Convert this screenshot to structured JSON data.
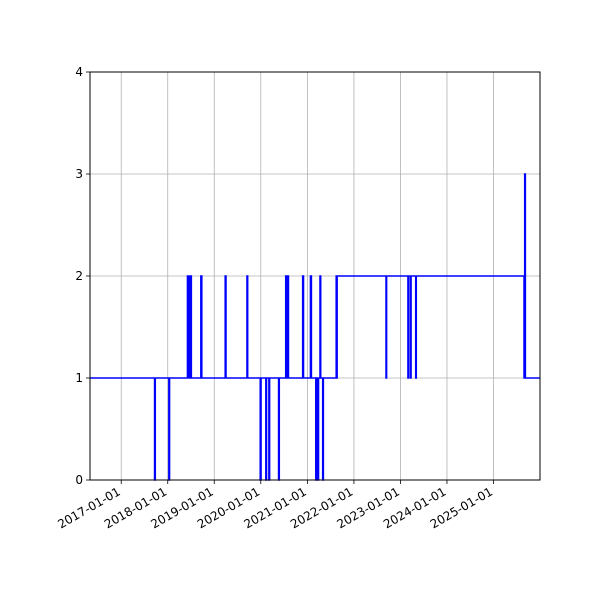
{
  "chart_data": {
    "type": "line",
    "title": "",
    "xlabel": "",
    "ylabel": "",
    "grid": true,
    "legend": "none",
    "x_axis_type": "date",
    "xlim": [
      "2016-05-01",
      "2025-12-31"
    ],
    "ylim": [
      0,
      4
    ],
    "x_ticks": [
      "2017-01-01",
      "2018-01-01",
      "2019-01-01",
      "2020-01-01",
      "2021-01-01",
      "2022-01-01",
      "2023-01-01",
      "2024-01-01",
      "2025-01-01"
    ],
    "y_ticks": [
      0,
      1,
      2,
      3,
      4
    ],
    "line_color": "#0000ff",
    "series": [
      {
        "name": "",
        "x": [
          "2016-05-01",
          "2017-09-20",
          "2017-09-20",
          "2017-09-25",
          "2017-09-25",
          "2018-01-10",
          "2018-01-10",
          "2018-01-15",
          "2018-01-15",
          "2018-06-05",
          "2018-06-05",
          "2018-06-10",
          "2018-06-10",
          "2018-06-15",
          "2018-06-15",
          "2018-06-20",
          "2018-06-20",
          "2018-06-25",
          "2018-06-25",
          "2018-07-05",
          "2018-07-05",
          "2018-09-18",
          "2018-09-18",
          "2018-09-25",
          "2018-09-25",
          "2019-03-28",
          "2019-03-28",
          "2019-04-03",
          "2019-04-03",
          "2019-09-15",
          "2019-09-15",
          "2019-09-20",
          "2019-09-20",
          "2019-12-28",
          "2019-12-28",
          "2020-01-03",
          "2020-01-03",
          "2020-02-10",
          "2020-02-10",
          "2020-02-15",
          "2020-02-15",
          "2020-03-05",
          "2020-03-05",
          "2020-03-10",
          "2020-03-10",
          "2020-05-20",
          "2020-05-20",
          "2020-05-25",
          "2020-05-25",
          "2020-07-15",
          "2020-07-15",
          "2020-07-20",
          "2020-07-20",
          "2020-08-01",
          "2020-08-01",
          "2020-08-05",
          "2020-08-05",
          "2020-11-25",
          "2020-11-25",
          "2020-12-01",
          "2020-12-01",
          "2021-01-25",
          "2021-01-25",
          "2021-02-01",
          "2021-02-01",
          "2021-03-08",
          "2021-03-08",
          "2021-03-15",
          "2021-03-15",
          "2021-03-22",
          "2021-03-22",
          "2021-03-29",
          "2021-03-29",
          "2021-04-10",
          "2021-04-10",
          "2021-04-15",
          "2021-04-15",
          "2021-05-01",
          "2021-05-01",
          "2021-05-06",
          "2021-05-06",
          "2021-08-15",
          "2021-08-15",
          "2021-08-18",
          "2021-08-18",
          "2021-08-22",
          "2021-08-22",
          "2022-09-10",
          "2022-09-10",
          "2022-09-14",
          "2022-09-14",
          "2023-03-01",
          "2023-03-01",
          "2023-03-05",
          "2023-03-05",
          "2023-03-20",
          "2023-03-20",
          "2023-03-25",
          "2023-03-25",
          "2023-05-01",
          "2023-05-01",
          "2023-05-05",
          "2023-05-05",
          "2025-08-28",
          "2025-08-28",
          "2025-09-02",
          "2025-09-02",
          "2025-09-07",
          "2025-09-07",
          "2025-12-31"
        ],
        "y": [
          1,
          1,
          0,
          0,
          1,
          1,
          0,
          0,
          1,
          1,
          2,
          2,
          1,
          1,
          2,
          2,
          1,
          1,
          2,
          2,
          1,
          1,
          2,
          2,
          1,
          1,
          2,
          2,
          1,
          1,
          2,
          2,
          1,
          1,
          0,
          0,
          1,
          1,
          0,
          0,
          1,
          1,
          0,
          0,
          1,
          1,
          0,
          0,
          1,
          1,
          2,
          2,
          1,
          1,
          2,
          2,
          1,
          1,
          2,
          2,
          1,
          1,
          2,
          2,
          1,
          1,
          0,
          0,
          1,
          1,
          0,
          0,
          1,
          1,
          2,
          2,
          1,
          1,
          0,
          0,
          1,
          1,
          2,
          2,
          1,
          1,
          2,
          2,
          1,
          1,
          2,
          2,
          1,
          1,
          2,
          2,
          1,
          1,
          2,
          2,
          1,
          1,
          2,
          2,
          1,
          1,
          3,
          3,
          1,
          1
        ]
      }
    ]
  }
}
